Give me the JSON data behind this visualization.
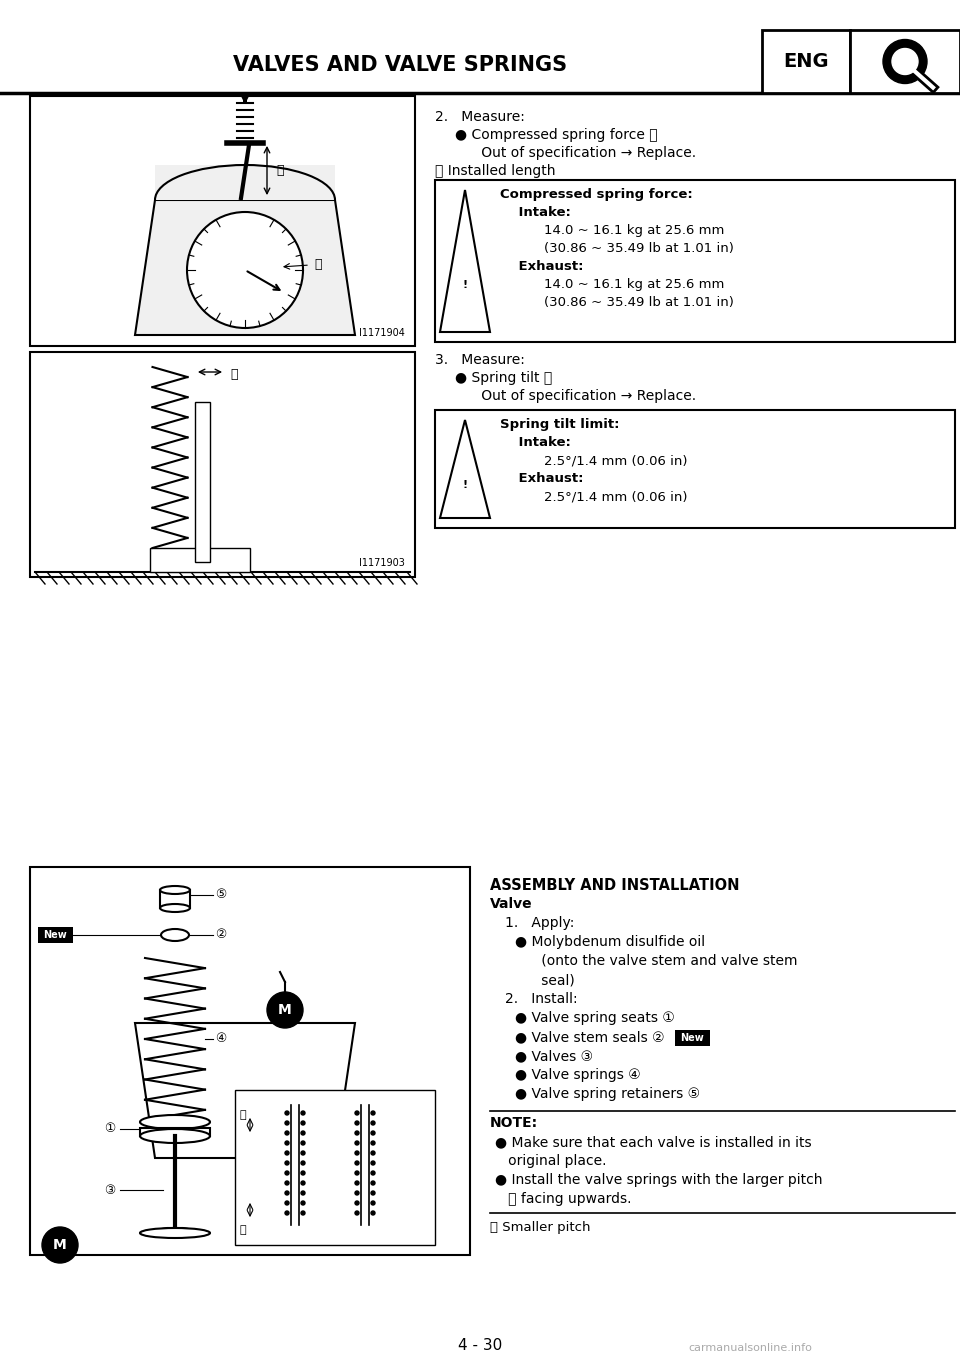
{
  "page_title": "VALVES AND VALVE SPRINGS",
  "eng_label": "ENG",
  "page_number": "4 - 30",
  "bg_color": "#ffffff",
  "text_color": "#000000",
  "section2_header": "2.   Measure:",
  "section2_bullet1": "● Compressed spring force ⓐ",
  "section2_sub1": "      Out of specification → Replace.",
  "section2_circle_b": "ⓑ Installed length",
  "box1_title": "Compressed spring force:",
  "box1_intake": "    Intake:",
  "box1_intake_v1": "        14.0 ~ 16.1 kg at 25.6 mm",
  "box1_intake_v2": "        (30.86 ~ 35.49 lb at 1.01 in)",
  "box1_exhaust": "    Exhaust:",
  "box1_exhaust_v1": "        14.0 ~ 16.1 kg at 25.6 mm",
  "box1_exhaust_v2": "        (30.86 ~ 35.49 lb at 1.01 in)",
  "section3_header": "3.   Measure:",
  "section3_bullet1": "● Spring tilt ⓐ",
  "section3_sub1": "      Out of specification → Replace.",
  "box2_title": "Spring tilt limit:",
  "box2_intake": "    Intake:",
  "box2_intake_v1": "        2.5°/1.4 mm (0.06 in)",
  "box2_exhaust": "    Exhaust:",
  "box2_exhaust_v1": "        2.5°/1.4 mm (0.06 in)",
  "assembly_header": "ASSEMBLY AND INSTALLATION",
  "assembly_sub": "Valve",
  "apply_header": "1.   Apply:",
  "apply_bullet1": "● Molybdenum disulfide oil",
  "apply_sub1": "      (onto the valve stem and valve stem",
  "apply_sub2": "      seal)",
  "install_header": "2.   Install:",
  "install_bullet1": "● Valve spring seats ①",
  "install_bullet2": "● Valve stem seals ②",
  "install_bullet3": "● Valves ③",
  "install_bullet4": "● Valve springs ④",
  "install_bullet5": "● Valve spring retainers ⑤",
  "note_header": "NOTE:",
  "note_line1": "● Make sure that each valve is installed in its",
  "note_line2": "   original place.",
  "note_line3": "● Install the valve springs with the larger pitch",
  "note_line4": "   ⓐ facing upwards.",
  "note_footer": "ⓑ Smaller pitch",
  "new_bg": "#000000",
  "new_fg": "#ffffff"
}
